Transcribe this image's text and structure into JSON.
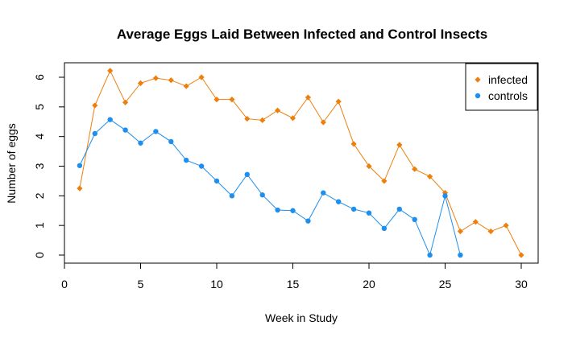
{
  "chart_data": {
    "type": "line",
    "title": "Average Eggs Laid Between Infected and Control Insects",
    "xlabel": "Week in Study",
    "ylabel": "Number of eggs",
    "xlim": [
      0,
      30
    ],
    "ylim": [
      0,
      6
    ],
    "xticks": [
      0,
      5,
      10,
      15,
      20,
      25,
      30
    ],
    "yticks": [
      0,
      1,
      2,
      3,
      4,
      5,
      6
    ],
    "grid": false,
    "legend_position": "top-right",
    "series": [
      {
        "name": "infected",
        "color": "#EE7F0D",
        "marker": "diamond",
        "x": [
          1,
          2,
          3,
          4,
          5,
          6,
          7,
          8,
          9,
          10,
          11,
          12,
          13,
          14,
          15,
          16,
          17,
          18,
          19,
          20,
          21,
          22,
          23,
          24,
          25,
          26,
          27,
          28,
          29,
          30
        ],
        "y": [
          2.25,
          5.05,
          6.22,
          5.15,
          5.8,
          5.97,
          5.9,
          5.7,
          6.0,
          5.25,
          5.25,
          4.6,
          4.55,
          4.88,
          4.62,
          5.32,
          4.48,
          5.18,
          3.75,
          3.0,
          2.5,
          3.72,
          2.9,
          2.65,
          2.1,
          0.8,
          1.12,
          0.8,
          1.0,
          0.0
        ]
      },
      {
        "name": "controls",
        "color": "#1E8FEE",
        "marker": "circle",
        "x": [
          1,
          2,
          3,
          4,
          5,
          6,
          7,
          8,
          9,
          10,
          11,
          12,
          13,
          14,
          15,
          16,
          17,
          18,
          19,
          20,
          21,
          22,
          23,
          24,
          25,
          26
        ],
        "y": [
          3.02,
          4.1,
          4.57,
          4.22,
          3.78,
          4.17,
          3.83,
          3.2,
          3.0,
          2.5,
          2.0,
          2.72,
          2.03,
          1.52,
          1.5,
          1.15,
          2.1,
          1.8,
          1.55,
          1.42,
          0.9,
          1.55,
          1.2,
          0.0,
          2.0,
          0.0
        ]
      }
    ]
  }
}
